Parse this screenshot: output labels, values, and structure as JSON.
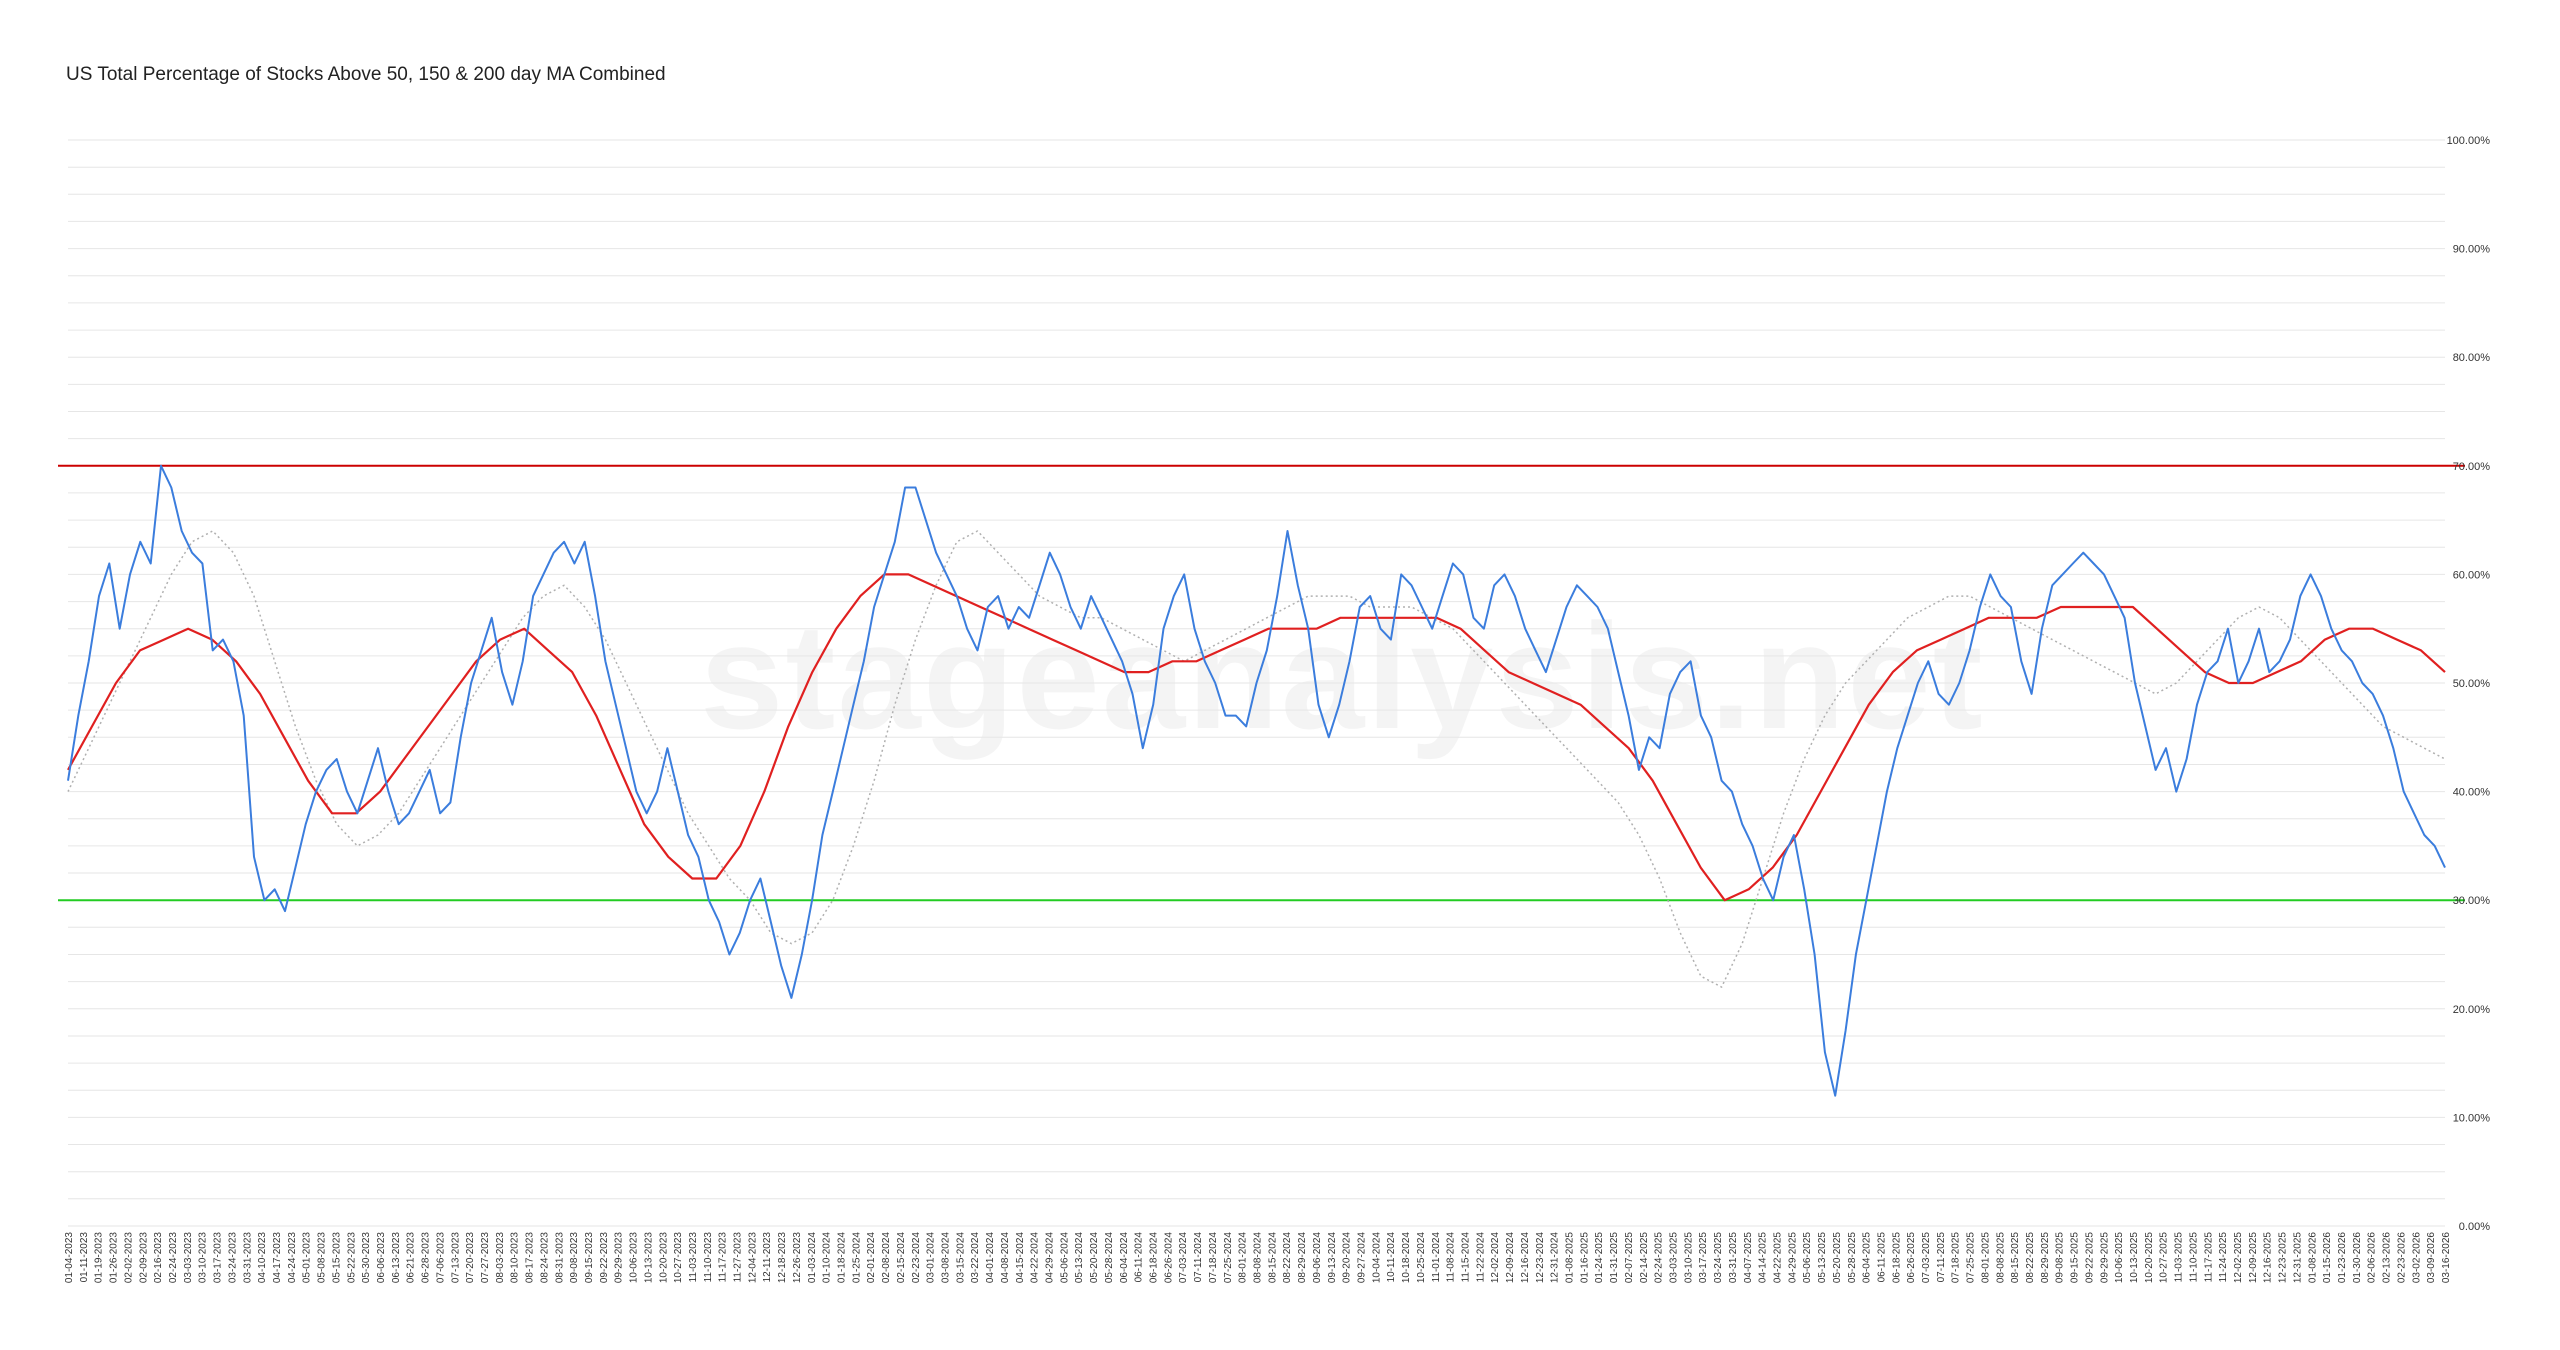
{
  "chart_data": {
    "type": "line",
    "title": "US Total Percentage of Stocks Above 50, 150 & 200 day MA Combined",
    "watermark": "stageanalysis.net",
    "xlabel": "",
    "ylabel": "",
    "ylim": [
      0,
      100
    ],
    "grid": true,
    "y_ticks": [
      "0.00%",
      "10.00%",
      "20.00%",
      "30.00%",
      "40.00%",
      "50.00%",
      "60.00%",
      "70.00%",
      "80.00%",
      "90.00%",
      "100.00%"
    ],
    "x_ticks": [
      "01-04-2023",
      "01-11-2023",
      "01-19-2023",
      "01-26-2023",
      "02-02-2023",
      "02-09-2023",
      "02-16-2023",
      "02-24-2023",
      "03-03-2023",
      "03-10-2023",
      "03-17-2023",
      "03-24-2023",
      "03-31-2023",
      "04-10-2023",
      "04-17-2023",
      "04-24-2023",
      "05-01-2023",
      "05-08-2023",
      "05-15-2023",
      "05-22-2023",
      "05-30-2023",
      "06-06-2023",
      "06-13-2023",
      "06-21-2023",
      "06-28-2023",
      "07-06-2023",
      "07-13-2023",
      "07-20-2023",
      "07-27-2023",
      "08-03-2023",
      "08-10-2023",
      "08-17-2023",
      "08-24-2023",
      "08-31-2023",
      "09-08-2023",
      "09-15-2023",
      "09-22-2023",
      "09-29-2023",
      "10-06-2023",
      "10-13-2023",
      "10-20-2023",
      "10-27-2023",
      "11-03-2023",
      "11-10-2023",
      "11-17-2023",
      "11-27-2023",
      "12-04-2023",
      "12-11-2023",
      "12-18-2023",
      "12-26-2023",
      "01-03-2024",
      "01-10-2024",
      "01-18-2024",
      "01-25-2024",
      "02-01-2024",
      "02-08-2024",
      "02-15-2024",
      "02-23-2024",
      "03-01-2024",
      "03-08-2024",
      "03-15-2024",
      "03-22-2024",
      "04-01-2024",
      "04-08-2024",
      "04-15-2024",
      "04-22-2024",
      "04-29-2024",
      "05-06-2024",
      "05-13-2024",
      "05-20-2024",
      "05-28-2024",
      "06-04-2024",
      "06-11-2024",
      "06-18-2024",
      "06-26-2024",
      "07-03-2024",
      "07-11-2024",
      "07-18-2024",
      "07-25-2024",
      "08-01-2024",
      "08-08-2024",
      "08-15-2024",
      "08-22-2024",
      "08-29-2024",
      "09-06-2024",
      "09-13-2024",
      "09-20-2024",
      "09-27-2024",
      "10-04-2024",
      "10-11-2024",
      "10-18-2024",
      "10-25-2024",
      "11-01-2024",
      "11-08-2024",
      "11-15-2024",
      "11-22-2024",
      "12-02-2024",
      "12-09-2024",
      "12-16-2024",
      "12-23-2024",
      "12-31-2024",
      "01-08-2025",
      "01-16-2025",
      "01-24-2025",
      "01-31-2025",
      "02-07-2025",
      "02-14-2025",
      "02-24-2025",
      "03-03-2025",
      "03-10-2025",
      "03-17-2025",
      "03-24-2025",
      "03-31-2025",
      "04-07-2025",
      "04-14-2025",
      "04-22-2025",
      "04-29-2025",
      "05-06-2025",
      "05-13-2025",
      "05-20-2025",
      "05-28-2025",
      "06-04-2025",
      "06-11-2025",
      "06-18-2025",
      "06-26-2025",
      "07-03-2025",
      "07-11-2025",
      "07-18-2025",
      "07-25-2025",
      "08-01-2025",
      "08-08-2025",
      "08-15-2025",
      "08-22-2025",
      "08-29-2025",
      "09-08-2025",
      "09-15-2025",
      "09-22-2025",
      "09-29-2025",
      "10-06-2025",
      "10-13-2025",
      "10-20-2025",
      "10-27-2025",
      "11-03-2025",
      "11-10-2025",
      "11-17-2025",
      "11-24-2025",
      "12-02-2025",
      "12-09-2025",
      "12-16-2025",
      "12-23-2025",
      "12-31-2025",
      "01-08-2026",
      "01-15-2026",
      "01-23-2026",
      "01-30-2026",
      "02-06-2026",
      "02-13-2026",
      "02-23-2026",
      "03-02-2026",
      "03-09-2026",
      "03-16-2026"
    ],
    "reference_lines": [
      {
        "value": 70,
        "color": "#cc0000"
      },
      {
        "value": 30,
        "color": "#22cc22"
      }
    ],
    "series": [
      {
        "style": "solid",
        "color": "#3b7ddd",
        "values": [
          41,
          47,
          52,
          58,
          61,
          55,
          60,
          63,
          61,
          70,
          68,
          64,
          62,
          61,
          53,
          54,
          52,
          47,
          34,
          30,
          31,
          29,
          33,
          37,
          40,
          42,
          43,
          40,
          38,
          41,
          44,
          40,
          37,
          38,
          40,
          42,
          38,
          39,
          45,
          50,
          53,
          56,
          51,
          48,
          52,
          58,
          60,
          62,
          63,
          61,
          63,
          58,
          52,
          48,
          44,
          40,
          38,
          40,
          44,
          40,
          36,
          34,
          30,
          28,
          25,
          27,
          30,
          32,
          28,
          24,
          21,
          25,
          30,
          36,
          40,
          44,
          48,
          52,
          57,
          60,
          63,
          68,
          68,
          65,
          62,
          60,
          58,
          55,
          53,
          57,
          58,
          55,
          57,
          56,
          59,
          62,
          60,
          57,
          55,
          58,
          56,
          54,
          52,
          49,
          44,
          48,
          55,
          58,
          60,
          55,
          52,
          50,
          47,
          47,
          46,
          50,
          53,
          58,
          64,
          59,
          55,
          48,
          45,
          48,
          52,
          57,
          58,
          55,
          54,
          60,
          59,
          57,
          55,
          58,
          61,
          60,
          56,
          55,
          59,
          60,
          58,
          55,
          53,
          51,
          54,
          57,
          59,
          58,
          57,
          55,
          51,
          47,
          42,
          45,
          44,
          49,
          51,
          52,
          47,
          45,
          41,
          40,
          37,
          35,
          32,
          30,
          34,
          36,
          31,
          25,
          16,
          12,
          18,
          25,
          30,
          35,
          40,
          44,
          47,
          50,
          52,
          49,
          48,
          50,
          53,
          57,
          60,
          58,
          57,
          52,
          49,
          55,
          59,
          60,
          61,
          62,
          61,
          60,
          58,
          56,
          50,
          46,
          42,
          44,
          40,
          43,
          48,
          51,
          52,
          55,
          50,
          52,
          55,
          51,
          52,
          54,
          58,
          60,
          58,
          55,
          53,
          52,
          50,
          49,
          47,
          44,
          40,
          38,
          36,
          35,
          33
        ],
        "name": ""
      },
      {
        "style": "solid",
        "color": "#e02020",
        "values": [
          42,
          46,
          50,
          53,
          54,
          55,
          54,
          52,
          49,
          45,
          41,
          38,
          38,
          40,
          43,
          46,
          49,
          52,
          54,
          55,
          53,
          51,
          47,
          42,
          37,
          34,
          32,
          32,
          35,
          40,
          46,
          51,
          55,
          58,
          60,
          60,
          59,
          58,
          57,
          56,
          55,
          54,
          53,
          52,
          51,
          51,
          52,
          52,
          53,
          54,
          55,
          55,
          55,
          56,
          56,
          56,
          56,
          56,
          55,
          53,
          51,
          50,
          49,
          48,
          46,
          44,
          41,
          37,
          33,
          30,
          31,
          33,
          36,
          40,
          44,
          48,
          51,
          53,
          54,
          55,
          56,
          56,
          56,
          57,
          57,
          57,
          57,
          55,
          53,
          51,
          50,
          50,
          51,
          52,
          54,
          55,
          55,
          54,
          53,
          51
        ],
        "name": ""
      },
      {
        "style": "dotted",
        "color": "#b0b0b0",
        "values": [
          40,
          44,
          48,
          52,
          56,
          60,
          63,
          64,
          62,
          58,
          52,
          46,
          41,
          37,
          35,
          36,
          38,
          41,
          44,
          47,
          50,
          53,
          56,
          58,
          59,
          57,
          54,
          50,
          46,
          42,
          38,
          35,
          32,
          30,
          27,
          26,
          27,
          30,
          35,
          41,
          48,
          54,
          59,
          63,
          64,
          62,
          60,
          58,
          57,
          56,
          56,
          55,
          54,
          53,
          52,
          53,
          54,
          55,
          56,
          57,
          58,
          58,
          58,
          57,
          57,
          57,
          56,
          55,
          53,
          51,
          49,
          47,
          45,
          43,
          41,
          39,
          36,
          32,
          27,
          23,
          22,
          26,
          32,
          38,
          43,
          47,
          50,
          52,
          54,
          56,
          57,
          58,
          58,
          57,
          56,
          55,
          54,
          53,
          52,
          51,
          50,
          49,
          50,
          52,
          54,
          56,
          57,
          56,
          54,
          52,
          50,
          48,
          46,
          45,
          44,
          43
        ],
        "name": ""
      }
    ]
  }
}
